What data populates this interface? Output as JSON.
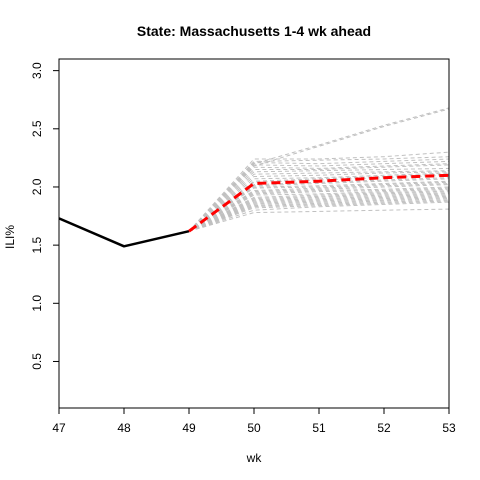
{
  "chart_data": {
    "type": "line",
    "title": "State: Massachusetts 1-4 wk ahead",
    "xlabel": "wk",
    "ylabel": "ILI%",
    "xlim": [
      47,
      53
    ],
    "ylim": [
      0.1,
      3.1
    ],
    "x_ticks": [
      47,
      48,
      49,
      50,
      51,
      52,
      53
    ],
    "y_ticks": [
      0.5,
      1.0,
      1.5,
      2.0,
      2.5,
      3.0
    ],
    "y_tick_labels": [
      "0.5",
      "1.0",
      "1.5",
      "2.0",
      "2.5",
      "3.0"
    ],
    "observed": {
      "color": "#000000",
      "x": [
        47,
        48,
        49
      ],
      "y": [
        1.73,
        1.49,
        1.62
      ]
    },
    "forecast_mean": {
      "color": "#ff0000",
      "x": [
        49,
        50,
        51,
        52,
        53
      ],
      "y": [
        1.62,
        2.03,
        2.05,
        2.08,
        2.1
      ]
    },
    "ensemble": {
      "color": "#c0c0c0",
      "x": [
        49,
        50,
        51,
        52,
        53
      ],
      "members": [
        [
          1.62,
          2.2,
          2.36,
          2.53,
          2.68
        ],
        [
          1.62,
          2.18,
          2.35,
          2.52,
          2.67
        ],
        [
          1.62,
          2.24,
          2.24,
          2.26,
          2.3
        ],
        [
          1.62,
          2.22,
          2.23,
          2.24,
          2.26
        ],
        [
          1.62,
          2.21,
          2.2,
          2.22,
          2.24
        ],
        [
          1.62,
          2.19,
          2.18,
          2.2,
          2.22
        ],
        [
          1.62,
          2.17,
          2.16,
          2.18,
          2.2
        ],
        [
          1.62,
          2.15,
          2.15,
          2.17,
          2.19
        ],
        [
          1.62,
          2.13,
          2.14,
          2.15,
          2.16
        ],
        [
          1.62,
          2.11,
          2.12,
          2.13,
          2.14
        ],
        [
          1.62,
          2.09,
          2.1,
          2.12,
          2.13
        ],
        [
          1.62,
          2.07,
          2.08,
          2.1,
          2.12
        ],
        [
          1.62,
          2.05,
          2.07,
          2.09,
          2.11
        ],
        [
          1.62,
          2.04,
          2.06,
          2.08,
          2.1
        ],
        [
          1.62,
          2.02,
          2.04,
          2.06,
          2.08
        ],
        [
          1.62,
          2.01,
          2.03,
          2.05,
          2.07
        ],
        [
          1.62,
          2.0,
          2.01,
          2.03,
          2.05
        ],
        [
          1.62,
          1.99,
          2.0,
          2.02,
          2.04
        ],
        [
          1.62,
          1.97,
          1.99,
          2.01,
          2.03
        ],
        [
          1.62,
          1.96,
          1.98,
          2.0,
          2.02
        ],
        [
          1.62,
          1.95,
          1.97,
          1.98,
          2.0
        ],
        [
          1.62,
          1.94,
          1.96,
          1.97,
          1.99
        ],
        [
          1.62,
          1.93,
          1.94,
          1.96,
          1.98
        ],
        [
          1.62,
          1.91,
          1.93,
          1.95,
          1.97
        ],
        [
          1.62,
          1.9,
          1.92,
          1.94,
          1.96
        ],
        [
          1.62,
          1.89,
          1.91,
          1.93,
          1.95
        ],
        [
          1.62,
          1.88,
          1.9,
          1.92,
          1.94
        ],
        [
          1.62,
          1.87,
          1.89,
          1.91,
          1.93
        ],
        [
          1.62,
          1.86,
          1.88,
          1.9,
          1.92
        ],
        [
          1.62,
          1.85,
          1.87,
          1.89,
          1.91
        ],
        [
          1.62,
          1.84,
          1.86,
          1.88,
          1.9
        ],
        [
          1.62,
          1.83,
          1.85,
          1.87,
          1.89
        ],
        [
          1.62,
          1.82,
          1.84,
          1.86,
          1.88
        ],
        [
          1.62,
          1.8,
          1.83,
          1.85,
          1.87
        ],
        [
          1.62,
          1.78,
          1.79,
          1.8,
          1.81
        ]
      ]
    },
    "grid": false,
    "legend": "none"
  }
}
